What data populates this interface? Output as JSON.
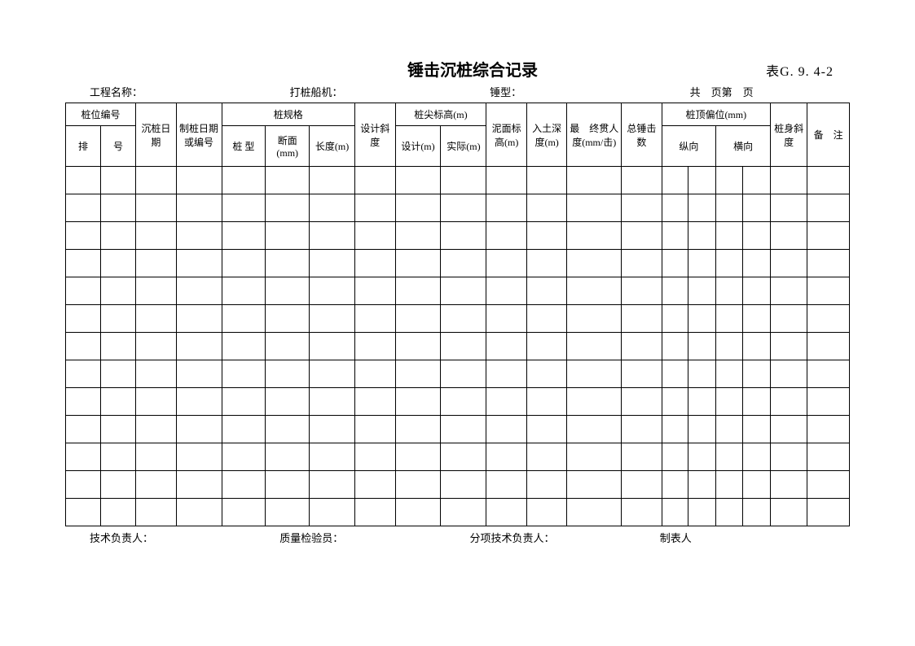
{
  "title": "锤击沉桩综合记录",
  "table_code": "表G. 9. 4-2",
  "info": {
    "project_name_label": "工程名称：",
    "machine_label": "打桩船机：",
    "hammer_type_label": "锤型：",
    "page_label": "共　页第　页"
  },
  "headers": {
    "pile_number": "桩位编号",
    "sink_date": "沉桩日期",
    "make_date": "制桩日期或编号",
    "pile_spec": "桩规格",
    "design_slope": "设计斜度",
    "tip_elev": "桩尖标高(m)",
    "mud_elev": "泥面标高(m)",
    "entry_depth": "入土深度(m)",
    "penetration": "最　终贯人度(mm/击)",
    "total_strikes": "总锤击数",
    "top_deviation": "桩顶偏位(mm)",
    "body_slope": "桩身斜度",
    "remark": "备　注",
    "row_label": "排",
    "num_label": "号",
    "type_label": "桩 型",
    "section_label": "断面(mm)",
    "length_label": "长度(m)",
    "design_label": "设计(m)",
    "actual_label": "实际(m)",
    "vertical_label": "纵向",
    "horizontal_label": "横向"
  },
  "footer": {
    "tech_lead": "技术负责人：",
    "qc": "质量检验员：",
    "sub_tech_lead": "分项技术负责人：",
    "preparer": "制表人"
  },
  "num_data_rows": 13,
  "num_cols": 19,
  "style": {
    "border_color": "#000000",
    "background_color": "#ffffff"
  }
}
